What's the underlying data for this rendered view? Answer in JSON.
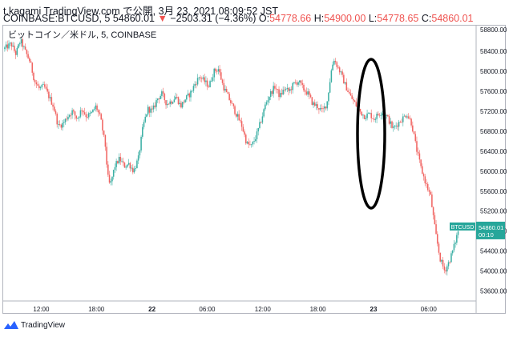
{
  "header": {
    "line1": "t.kagami TradingView.com で公開, 3月 23, 2021 08:09:52 JST",
    "symbol_prefix": "COINBASE:BTCUSD, 5",
    "last_price": "54860.01",
    "change": "−2503.31 (−4.36%)",
    "ohlc": {
      "o_label": "O:",
      "o": "54778.66",
      "h_label": "H:",
      "h": "54900.00",
      "l_label": "L:",
      "l": "54778.65",
      "c_label": "C:",
      "c": "54860.01"
    }
  },
  "legend": "ビットコイン／米ドル, 5, COINBASE",
  "footer": {
    "brand": "TradingView"
  },
  "colors": {
    "up": "#26a69a",
    "down": "#ef5350",
    "axis_text": "#131722",
    "badge": "#26a69a"
  },
  "price_badge": {
    "symbol": "BTCUSD",
    "price": "54860.01",
    "countdown": "00:10"
  },
  "chart_data": {
    "type": "candlestick",
    "title": "",
    "xlabel": "",
    "ylabel": "",
    "ylim": [
      53400,
      58900
    ],
    "y_ticks": [
      58400,
      58000,
      57600,
      57200,
      56800,
      56400,
      56000,
      55600,
      55200,
      54800,
      54400,
      54000,
      53600
    ],
    "y_tick_labels": [
      "58400.00",
      "58000.00",
      "57600.00",
      "57200.00",
      "56800.00",
      "56400.00",
      "56000.00",
      "55600.00",
      "55200.00",
      "54800.00",
      "54400.00",
      "54000.00",
      "53600.00"
    ],
    "y_top_partial_label": "58800.00",
    "x_ticks": [
      "12:00",
      "18:00",
      "22",
      "06:00",
      "12:00",
      "18:00",
      "23",
      "06:00"
    ],
    "x_range": [
      0,
      100
    ],
    "x_tick_positions": [
      7.9,
      19.6,
      31.4,
      43.1,
      54.9,
      66.6,
      78.4,
      90.1
    ],
    "grid": false,
    "price_path": [
      [
        0,
        58450
      ],
      [
        1.5,
        58550
      ],
      [
        2.5,
        58350
      ],
      [
        3.5,
        58620
      ],
      [
        4.5,
        58400
      ],
      [
        5.5,
        58200
      ],
      [
        6.5,
        57800
      ],
      [
        7.5,
        57650
      ],
      [
        8.5,
        57700
      ],
      [
        9.5,
        57500
      ],
      [
        10.5,
        57300
      ],
      [
        11.5,
        56900
      ],
      [
        12.5,
        56950
      ],
      [
        13.5,
        57100
      ],
      [
        14.5,
        57200
      ],
      [
        15.5,
        57050
      ],
      [
        16.5,
        57250
      ],
      [
        17.5,
        57100
      ],
      [
        18.5,
        57150
      ],
      [
        19.5,
        57300
      ],
      [
        20.5,
        57050
      ],
      [
        21.5,
        56500
      ],
      [
        22,
        55900
      ],
      [
        22.5,
        55700
      ],
      [
        23.5,
        56100
      ],
      [
        24.5,
        56250
      ],
      [
        25.5,
        56100
      ],
      [
        26.5,
        56150
      ],
      [
        27.5,
        56000
      ],
      [
        28.5,
        56250
      ],
      [
        29.5,
        56900
      ],
      [
        30.5,
        57250
      ],
      [
        31.5,
        57200
      ],
      [
        32.5,
        57450
      ],
      [
        33.5,
        57550
      ],
      [
        34.5,
        57350
      ],
      [
        35.5,
        57400
      ],
      [
        36.5,
        57500
      ],
      [
        37.5,
        57300
      ],
      [
        38.5,
        57450
      ],
      [
        39.5,
        57550
      ],
      [
        40.5,
        57750
      ],
      [
        41.5,
        57900
      ],
      [
        42.5,
        57800
      ],
      [
        43.5,
        57700
      ],
      [
        44.5,
        58000
      ],
      [
        45.5,
        58050
      ],
      [
        46.5,
        57700
      ],
      [
        47.5,
        57500
      ],
      [
        48.5,
        57300
      ],
      [
        49.5,
        57100
      ],
      [
        50.5,
        56900
      ],
      [
        51.5,
        56550
      ],
      [
        52.5,
        56500
      ],
      [
        53.5,
        56700
      ],
      [
        54.5,
        57000
      ],
      [
        55.5,
        57350
      ],
      [
        56.5,
        57550
      ],
      [
        57.5,
        57700
      ],
      [
        58.5,
        57500
      ],
      [
        59.5,
        57650
      ],
      [
        60.5,
        57600
      ],
      [
        61.5,
        57750
      ],
      [
        62.5,
        57800
      ],
      [
        63.5,
        57650
      ],
      [
        64.5,
        57550
      ],
      [
        65.5,
        57350
      ],
      [
        66.5,
        57300
      ],
      [
        67.5,
        57200
      ],
      [
        68.5,
        57350
      ],
      [
        69.5,
        58050
      ],
      [
        70,
        58250
      ],
      [
        70.5,
        58150
      ],
      [
        71.5,
        57950
      ],
      [
        72.5,
        57700
      ],
      [
        73.5,
        57500
      ],
      [
        74.5,
        57350
      ],
      [
        75.5,
        57200
      ],
      [
        76.5,
        57100
      ],
      [
        77.5,
        57150
      ],
      [
        78.5,
        57050
      ],
      [
        79.5,
        57150
      ],
      [
        80.5,
        57200
      ],
      [
        81.5,
        57050
      ],
      [
        82.5,
        56850
      ],
      [
        83.5,
        56950
      ],
      [
        84.5,
        57050
      ],
      [
        85.5,
        57150
      ],
      [
        86.5,
        56950
      ],
      [
        87.5,
        56450
      ],
      [
        88.5,
        56050
      ],
      [
        89.5,
        55750
      ],
      [
        90.5,
        55500
      ],
      [
        91.5,
        54800
      ],
      [
        92.5,
        54250
      ],
      [
        93.5,
        54000
      ],
      [
        94.5,
        54200
      ],
      [
        95.5,
        54500
      ],
      [
        96.5,
        54860
      ]
    ]
  }
}
